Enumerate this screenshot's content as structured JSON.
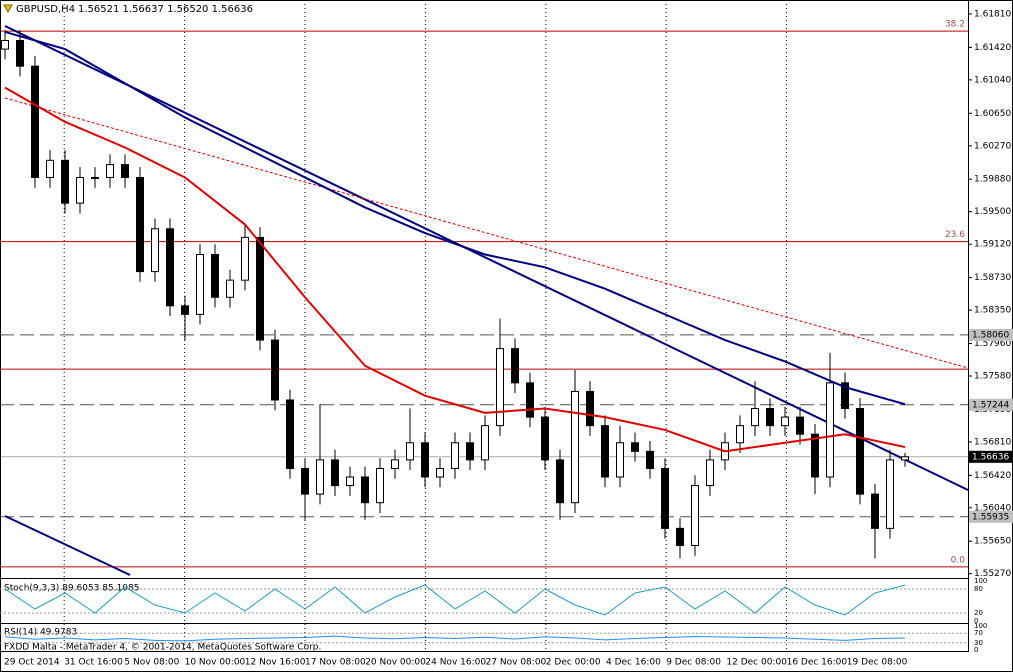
{
  "chart_data": {
    "type": "candlestick",
    "title": "GBPUSD,H4",
    "ohlc_text": "1.56521 1.56637 1.56520 1.56636",
    "status_text": "FXDD Malta - MetaTrader 4, © 2001-2014, MetaQuotes Software Corp.",
    "ylim": [
      1.5522,
      1.6195
    ],
    "yticks": [
      {
        "value": 1.6181,
        "label": "1.61810"
      },
      {
        "value": 1.6142,
        "label": "1.61420"
      },
      {
        "value": 1.6104,
        "label": "1.61040"
      },
      {
        "value": 1.6065,
        "label": "1.60650"
      },
      {
        "value": 1.6027,
        "label": "1.60270"
      },
      {
        "value": 1.5988,
        "label": "1.59880"
      },
      {
        "value": 1.595,
        "label": "1.59500"
      },
      {
        "value": 1.5912,
        "label": "1.59120"
      },
      {
        "value": 1.5873,
        "label": "1.58730"
      },
      {
        "value": 1.5835,
        "label": "1.58350"
      },
      {
        "value": 1.5796,
        "label": "1.57960"
      },
      {
        "value": 1.5758,
        "label": "1.57580"
      },
      {
        "value": 1.5719,
        "label": "1.57190"
      },
      {
        "value": 1.5681,
        "label": "1.56810"
      },
      {
        "value": 1.5642,
        "label": "1.56420"
      },
      {
        "value": 1.5604,
        "label": "1.56040"
      },
      {
        "value": 1.5565,
        "label": "1.55650"
      },
      {
        "value": 1.5527,
        "label": "1.55270"
      }
    ],
    "xticks": [
      "29 Oct 2014",
      "31 Oct 16:00",
      "5 Nov 08:00",
      "10 Nov 00:00",
      "12 Nov 16:00",
      "17 Nov 08:00",
      "20 Nov 00:00",
      "24 Nov 16:00",
      "27 Nov 08:00",
      "2 Dec 00:00",
      "4 Dec 16:00",
      "9 Dec 08:00",
      "12 Dec 00:00",
      "16 Dec 16:00",
      "19 Dec 08:00"
    ],
    "levels": [
      {
        "value": 1.5806,
        "label": "1.58060"
      },
      {
        "value": 1.57244,
        "label": "1.57244"
      },
      {
        "value": 1.55935,
        "label": "1.55935"
      }
    ],
    "last_price": {
      "value": 1.56636,
      "label": "1.56636"
    },
    "fib_levels": [
      {
        "value": 1.6161,
        "label": "38.2"
      },
      {
        "value": 1.5915,
        "label": "23.6"
      },
      {
        "value": 1.5535,
        "label": "0.0"
      }
    ],
    "red_lines": [
      1.5766
    ],
    "open": [
      1.614,
      1.615,
      1.612,
      1.599,
      1.601,
      1.596,
      1.599,
      1.599,
      1.6005,
      1.599,
      1.588,
      1.593,
      1.584,
      1.583,
      1.59,
      1.585,
      1.587,
      1.592,
      1.58,
      1.573,
      1.565,
      1.562,
      1.566,
      1.563,
      1.564,
      1.561,
      1.565,
      1.566,
      1.568,
      1.564,
      1.565,
      1.568,
      1.566,
      1.57,
      1.579,
      1.575,
      1.571,
      1.566,
      1.561,
      1.574,
      1.57,
      1.564,
      1.568,
      1.567,
      1.565,
      1.558,
      1.556,
      1.563,
      1.566,
      1.568,
      1.57,
      1.572,
      1.57,
      1.571,
      1.569,
      1.564,
      1.575,
      1.572,
      1.562,
      1.558,
      1.566
    ],
    "high": [
      1.6162,
      1.6162,
      1.6132,
      1.6022,
      1.6022,
      1.6002,
      1.6002,
      1.6017,
      1.6017,
      1.6002,
      1.5942,
      1.5942,
      1.5852,
      1.5912,
      1.5912,
      1.5882,
      1.5935,
      1.5932,
      1.5812,
      1.5742,
      1.5662,
      1.5725,
      1.5672,
      1.5652,
      1.5652,
      1.5662,
      1.5672,
      1.572,
      1.5692,
      1.5662,
      1.5692,
      1.5692,
      1.5712,
      1.5825,
      1.5802,
      1.5762,
      1.5722,
      1.5672,
      1.5765,
      1.5752,
      1.5712,
      1.57,
      1.5692,
      1.5682,
      1.5662,
      1.5592,
      1.5642,
      1.5672,
      1.5692,
      1.5712,
      1.5752,
      1.5732,
      1.5722,
      1.5722,
      1.5702,
      1.5785,
      1.5762,
      1.5732,
      1.5632,
      1.5672,
      1.56681
    ],
    "low": [
      1.6128,
      1.6108,
      1.5978,
      1.5978,
      1.5948,
      1.5948,
      1.5978,
      1.5978,
      1.5978,
      1.5868,
      1.5868,
      1.5828,
      1.58,
      1.5818,
      1.5838,
      1.5838,
      1.5858,
      1.5788,
      1.5718,
      1.5638,
      1.559,
      1.5608,
      1.5618,
      1.5618,
      1.559,
      1.5598,
      1.5638,
      1.5648,
      1.5628,
      1.5628,
      1.5638,
      1.5648,
      1.5648,
      1.5688,
      1.5738,
      1.5698,
      1.5648,
      1.559,
      1.5598,
      1.5688,
      1.5628,
      1.5628,
      1.5658,
      1.5638,
      1.5568,
      1.5545,
      1.5548,
      1.5618,
      1.5648,
      1.5668,
      1.5688,
      1.5688,
      1.5688,
      1.5678,
      1.562,
      1.5628,
      1.5708,
      1.5608,
      1.5545,
      1.5568,
      1.5652
    ],
    "close": [
      1.615,
      1.612,
      1.599,
      1.601,
      1.596,
      1.599,
      1.599,
      1.6005,
      1.599,
      1.588,
      1.593,
      1.584,
      1.583,
      1.59,
      1.585,
      1.587,
      1.592,
      1.58,
      1.573,
      1.565,
      1.562,
      1.566,
      1.563,
      1.564,
      1.561,
      1.565,
      1.566,
      1.568,
      1.564,
      1.565,
      1.568,
      1.566,
      1.57,
      1.579,
      1.575,
      1.571,
      1.566,
      1.561,
      1.574,
      1.57,
      1.564,
      1.568,
      1.567,
      1.565,
      1.558,
      1.556,
      1.563,
      1.566,
      1.568,
      1.57,
      1.572,
      1.57,
      1.571,
      1.569,
      1.564,
      1.575,
      1.572,
      1.562,
      1.558,
      1.566,
      1.56636
    ],
    "series": [
      {
        "color": "#e00000",
        "x": [
          0,
          4,
          8,
          12,
          16,
          20,
          24,
          28,
          32,
          36,
          40,
          44,
          48,
          52,
          56,
          60
        ],
        "values": [
          1.6095,
          1.6055,
          1.6025,
          1.599,
          1.5935,
          1.585,
          1.577,
          1.5735,
          1.5715,
          1.572,
          1.571,
          1.5695,
          1.567,
          1.568,
          1.569,
          1.5675
        ]
      },
      {
        "color": "#000080",
        "x": [
          0,
          4,
          8,
          12,
          16,
          20,
          24,
          28,
          32,
          36,
          40,
          44,
          48,
          52,
          56,
          60
        ],
        "values": [
          1.616,
          1.614,
          1.61,
          1.606,
          1.6025,
          1.599,
          1.5955,
          1.5925,
          1.59,
          1.5885,
          1.586,
          1.583,
          1.58,
          1.5775,
          1.5745,
          1.5725
        ]
      }
    ],
    "stoch": {
      "label": "Stoch(9,3,3) 89.6053 85.1085",
      "color": "#20a0c0",
      "ylim": [
        0,
        100
      ],
      "yticks": [
        100,
        80,
        20,
        0
      ],
      "values": [
        80,
        30,
        70,
        20,
        85,
        40,
        20,
        70,
        25,
        80,
        30,
        85,
        20,
        60,
        90,
        30,
        75,
        20,
        80,
        40,
        15,
        70,
        85,
        30,
        75,
        20,
        85,
        40,
        15,
        70,
        89.6
      ]
    },
    "rsi": {
      "label": "RSI(14) 49.9783",
      "color": "#1e90ff",
      "ylim": [
        0,
        100
      ],
      "yticks": [
        100,
        70,
        30,
        0
      ],
      "values": [
        55,
        45,
        50,
        42,
        48,
        40,
        38,
        45,
        48,
        50,
        52,
        58,
        50,
        47,
        52,
        48,
        53,
        46,
        55,
        50,
        42,
        48,
        52,
        56,
        54,
        52,
        50,
        45,
        40,
        48,
        50
      ]
    }
  }
}
